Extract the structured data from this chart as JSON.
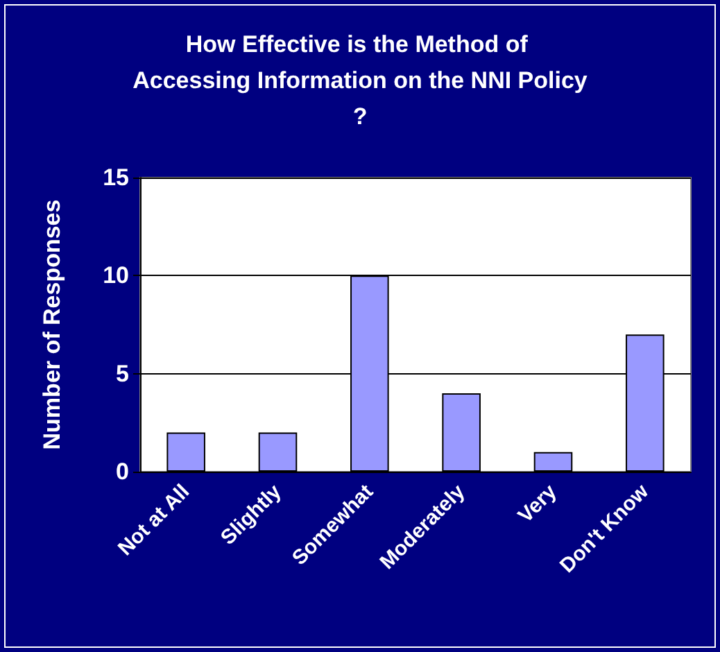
{
  "chart_data": {
    "type": "bar",
    "title": "How Effective is the Method of Accessing Information on the NNI Policy?",
    "ylabel": "Number of Responses",
    "categories": [
      "Not at All",
      "Slightly",
      "Somewhat",
      "Moderately",
      "Very",
      "Don't Know"
    ],
    "values": [
      2,
      2,
      10,
      4,
      1,
      7
    ],
    "color": "#9999ff",
    "ylim": [
      0,
      15
    ],
    "yticks": [
      0,
      5,
      10,
      15
    ],
    "grid": "y"
  }
}
